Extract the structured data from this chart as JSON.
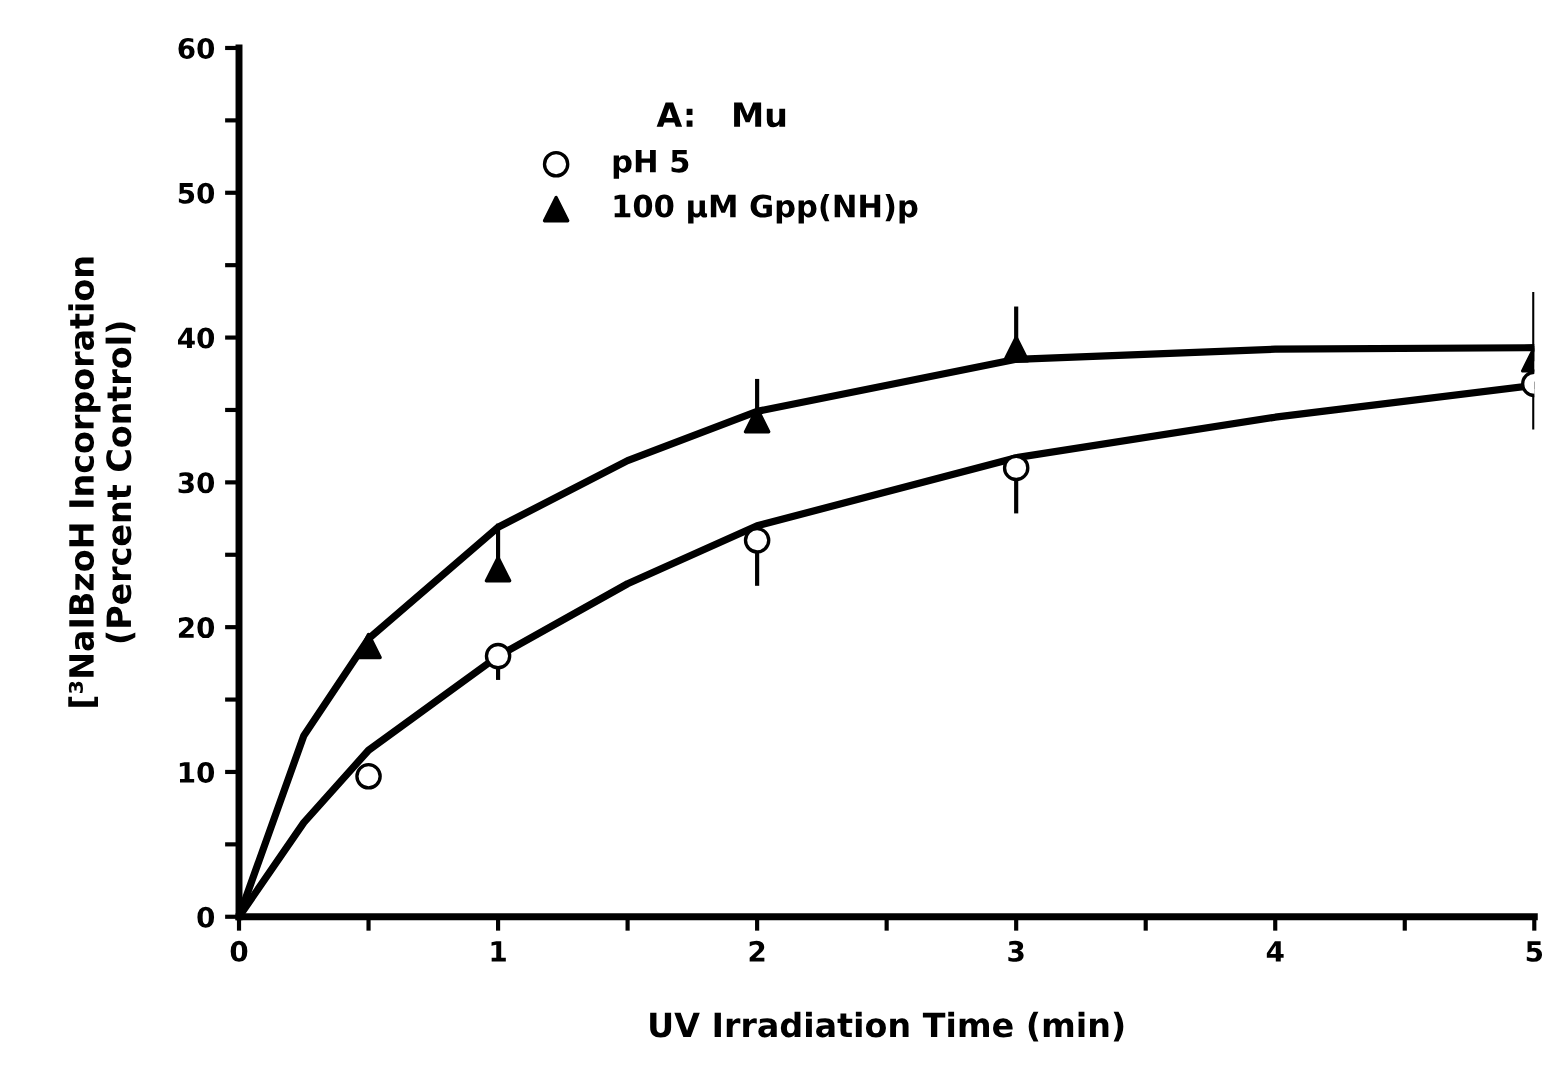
{
  "chart_data": {
    "type": "scatter",
    "xlabel": "UV Irradiation Time (min)",
    "ylabel": "[³NaIBzoH Incorporation\n(Percent Control)",
    "legend_title": "A:   Mu",
    "legend": "top left",
    "xlim": [
      0,
      5
    ],
    "ylim": [
      0,
      60
    ],
    "xticks": [
      0,
      {
        "value": 0.5,
        "label": null
      },
      1,
      {
        "value": 1.5,
        "label": null
      },
      2,
      {
        "value": 2.5,
        "label": null
      },
      3,
      {
        "value": 3.5,
        "label": null
      },
      4,
      {
        "value": 4.5,
        "label": null
      },
      5
    ],
    "yticks": [
      0,
      {
        "value": 5,
        "label": null
      },
      10,
      {
        "value": 15,
        "label": null
      },
      20,
      {
        "value": 25,
        "label": null
      },
      30,
      {
        "value": 35,
        "label": null
      },
      40,
      {
        "value": 45,
        "label": null
      },
      50,
      {
        "value": 55,
        "label": null
      },
      60
    ],
    "grid": false,
    "series": [
      {
        "name": "pH 5",
        "color": "#000000",
        "marker": "circle",
        "x": [
          0.5,
          1,
          2,
          3,
          5
        ],
        "values": [
          9.7,
          18,
          26,
          31,
          36.8
        ],
        "errors": [
          null,
          [
            16.5,
            18
          ],
          [
            23,
            26
          ],
          [
            28,
            31
          ],
          [
            33.8,
            36.8
          ]
        ]
      },
      {
        "name": "100 µM Gpp(NH)p",
        "color": "#000000",
        "marker": "triangle",
        "x": [
          0.5,
          1,
          2,
          3,
          5
        ],
        "values": [
          18.7,
          24,
          34.3,
          39.2,
          38.5
        ],
        "errors": [
          null,
          [
            24,
            27
          ],
          [
            34.3,
            37
          ],
          [
            39.2,
            42
          ],
          [
            38.5,
            43
          ]
        ]
      },
      {
        "type": "line",
        "color": "#000000",
        "marker": "none",
        "x": [
          0,
          0.25,
          0.5,
          1,
          1.5,
          2,
          3,
          4,
          5
        ],
        "values": [
          0,
          6.5,
          11.5,
          18,
          23,
          27,
          31.7,
          34.5,
          36.7
        ]
      },
      {
        "type": "line",
        "color": "#000000",
        "marker": "none",
        "x": [
          0,
          0.25,
          0.5,
          1,
          1.5,
          2,
          3,
          4,
          5
        ],
        "values": [
          0,
          12.5,
          19.2,
          26.9,
          31.5,
          34.9,
          38.5,
          39.2,
          39.3
        ]
      }
    ]
  }
}
